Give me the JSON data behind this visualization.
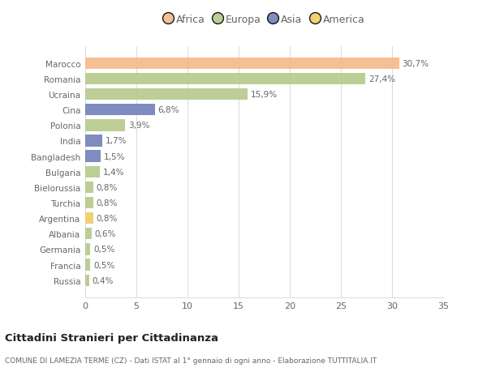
{
  "categories": [
    "Marocco",
    "Romania",
    "Ucraina",
    "Cina",
    "Polonia",
    "India",
    "Bangladesh",
    "Bulgaria",
    "Bielorussia",
    "Turchia",
    "Argentina",
    "Albania",
    "Germania",
    "Francia",
    "Russia"
  ],
  "values": [
    30.7,
    27.4,
    15.9,
    6.8,
    3.9,
    1.7,
    1.5,
    1.4,
    0.8,
    0.8,
    0.8,
    0.6,
    0.5,
    0.5,
    0.4
  ],
  "labels": [
    "30,7%",
    "27,4%",
    "15,9%",
    "6,8%",
    "3,9%",
    "1,7%",
    "1,5%",
    "1,4%",
    "0,8%",
    "0,8%",
    "0,8%",
    "0,6%",
    "0,5%",
    "0,5%",
    "0,4%"
  ],
  "colors": [
    "#f5b98a",
    "#b5c98a",
    "#b5c98a",
    "#7080b8",
    "#b5c98a",
    "#7080b8",
    "#7080b8",
    "#b5c98a",
    "#b5c98a",
    "#b5c98a",
    "#f0cc60",
    "#b5c98a",
    "#b5c98a",
    "#b5c98a",
    "#b5c98a"
  ],
  "legend_labels": [
    "Africa",
    "Europa",
    "Asia",
    "America"
  ],
  "legend_colors": [
    "#f5b98a",
    "#b5c98a",
    "#7080b8",
    "#f0cc60"
  ],
  "title": "Cittadini Stranieri per Cittadinanza",
  "subtitle": "COMUNE DI LAMEZIA TERME (CZ) - Dati ISTAT al 1° gennaio di ogni anno - Elaborazione TUTTITALIA.IT",
  "xlim": [
    0,
    35
  ],
  "xticks": [
    0,
    5,
    10,
    15,
    20,
    25,
    30,
    35
  ],
  "bg_color": "#ffffff",
  "plot_bg_color": "#ffffff",
  "grid_color": "#dddddd",
  "label_color": "#666666",
  "title_color": "#222222",
  "subtitle_color": "#666666"
}
